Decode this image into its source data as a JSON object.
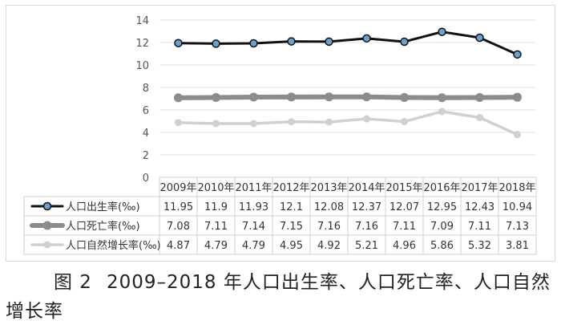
{
  "chart_data": {
    "type": "line",
    "categories": [
      "2009年",
      "2010年",
      "2011年",
      "2012年",
      "2013年",
      "2014年",
      "2015年",
      "2016年",
      "2017年",
      "2018年"
    ],
    "series": [
      {
        "name": "人口出生率(‰)",
        "values": [
          11.95,
          11.9,
          11.93,
          12.1,
          12.08,
          12.37,
          12.07,
          12.95,
          12.43,
          10.94
        ],
        "value_labels": [
          "11.95",
          "11.9",
          "11.93",
          "12.1",
          "12.08",
          "12.37",
          "12.07",
          "12.95",
          "12.43",
          "10.94"
        ],
        "color": "#111111",
        "marker_fill": "#6fa0cc"
      },
      {
        "name": "人口死亡率(‰)",
        "values": [
          7.08,
          7.11,
          7.14,
          7.15,
          7.16,
          7.16,
          7.11,
          7.09,
          7.11,
          7.13
        ],
        "value_labels": [
          "7.08",
          "7.11",
          "7.14",
          "7.15",
          "7.16",
          "7.16",
          "7.11",
          "7.09",
          "7.11",
          "7.13"
        ],
        "color": "#8c8c8c",
        "marker_fill": "#8c8c8c"
      },
      {
        "name": "人口自然增长率(‰)",
        "values": [
          4.87,
          4.79,
          4.79,
          4.95,
          4.92,
          5.21,
          4.96,
          5.86,
          5.32,
          3.81
        ],
        "value_labels": [
          "4.87",
          "4.79",
          "4.79",
          "4.95",
          "4.92",
          "5.21",
          "4.96",
          "5.86",
          "5.32",
          "3.81"
        ],
        "color": "#d0d0d0",
        "marker_fill": "#d0d0d0"
      }
    ],
    "yticks": [
      "0",
      "2",
      "4",
      "6",
      "8",
      "10",
      "12",
      "14"
    ],
    "ylim": [
      0,
      14
    ],
    "grid": true,
    "legend": "data-table-left"
  },
  "caption": {
    "tag": "图 2",
    "text": "2009–2018 年人口出生率、人口死亡率、人口自然增长率"
  }
}
